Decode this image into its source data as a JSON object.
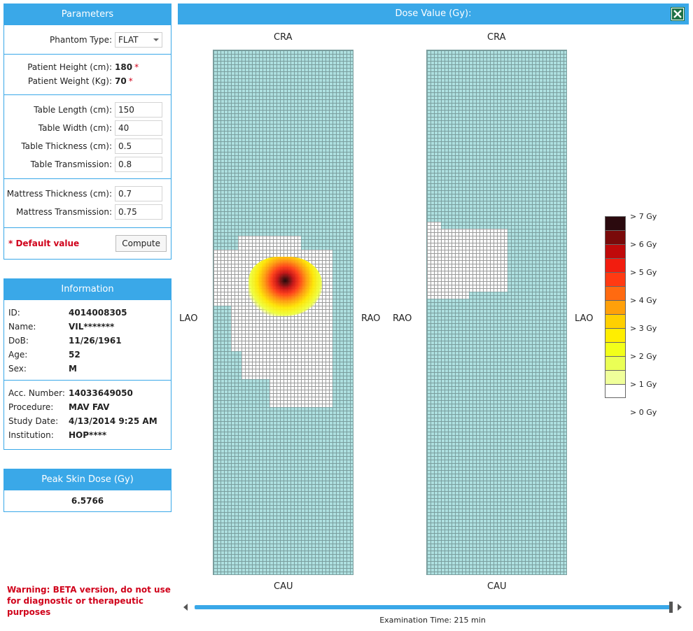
{
  "parameters": {
    "title": "Parameters",
    "phantom_label": "Phantom Type:",
    "phantom_value": "FLAT",
    "height_label": "Patient Height (cm):",
    "height_value": "180",
    "weight_label": "Patient Weight (Kg):",
    "weight_value": "70",
    "req_mark": "*",
    "table_length_label": "Table Length (cm):",
    "table_length_value": "150",
    "table_width_label": "Table Width (cm):",
    "table_width_value": "40",
    "table_thickness_label": "Table Thickness (cm):",
    "table_thickness_value": "0.5",
    "table_transmission_label": "Table Transmission:",
    "table_transmission_value": "0.8",
    "mattress_thickness_label": "Mattress Thickness (cm):",
    "mattress_thickness_value": "0.7",
    "mattress_transmission_label": "Mattress Transmission:",
    "mattress_transmission_value": "0.75",
    "default_note": "* Default value",
    "compute_label": "Compute"
  },
  "information": {
    "title": "Information",
    "rows1": [
      {
        "label": "ID:",
        "value": "4014008305"
      },
      {
        "label": "Name:",
        "value": "VIL*******"
      },
      {
        "label": "DoB:",
        "value": "11/26/1961"
      },
      {
        "label": "Age:",
        "value": "52"
      },
      {
        "label": "Sex:",
        "value": "M"
      }
    ],
    "rows2": [
      {
        "label": "Acc. Number:",
        "value": "14033649050"
      },
      {
        "label": "Procedure:",
        "value": "MAV FAV"
      },
      {
        "label": "Study Date:",
        "value": "4/13/2014 9:25 AM"
      },
      {
        "label": "Institution:",
        "value": "HOP****"
      }
    ]
  },
  "peak": {
    "title": "Peak Skin Dose (Gy)",
    "value": "6.5766"
  },
  "warning": "Warning: BETA version, do not use for diagnostic or therapeutic purposes",
  "dose_header": {
    "title": "Dose Value (Gy):",
    "export_icon": "excel-export-icon"
  },
  "map_left": {
    "top": "CRA",
    "bottom": "CAU",
    "left": "LAO",
    "right": "RAO"
  },
  "map_right": {
    "top": "CRA",
    "bottom": "CAU",
    "left": "RAO",
    "right": "LAO"
  },
  "legend": {
    "labels": [
      "> 7 Gy",
      "> 6 Gy",
      "> 5 Gy",
      "> 4 Gy",
      "> 3 Gy",
      "> 2 Gy",
      "> 1 Gy",
      "> 0 Gy"
    ],
    "colors": [
      "#2b0a0e",
      "#7a0a0a",
      "#c00a0a",
      "#f21d0f",
      "#ff3a12",
      "#ff6a10",
      "#ffa00a",
      "#ffd000",
      "#ffee00",
      "#f2ff1a",
      "#eaff55",
      "#f0ff9a",
      "#ffffff"
    ]
  },
  "timeline": {
    "label": "Examination Time: 215 min",
    "position": 1.0
  },
  "colors": {
    "accent": "#3aa8e8",
    "grid_bg": "#aee0e0",
    "warning": "#d0021b"
  }
}
